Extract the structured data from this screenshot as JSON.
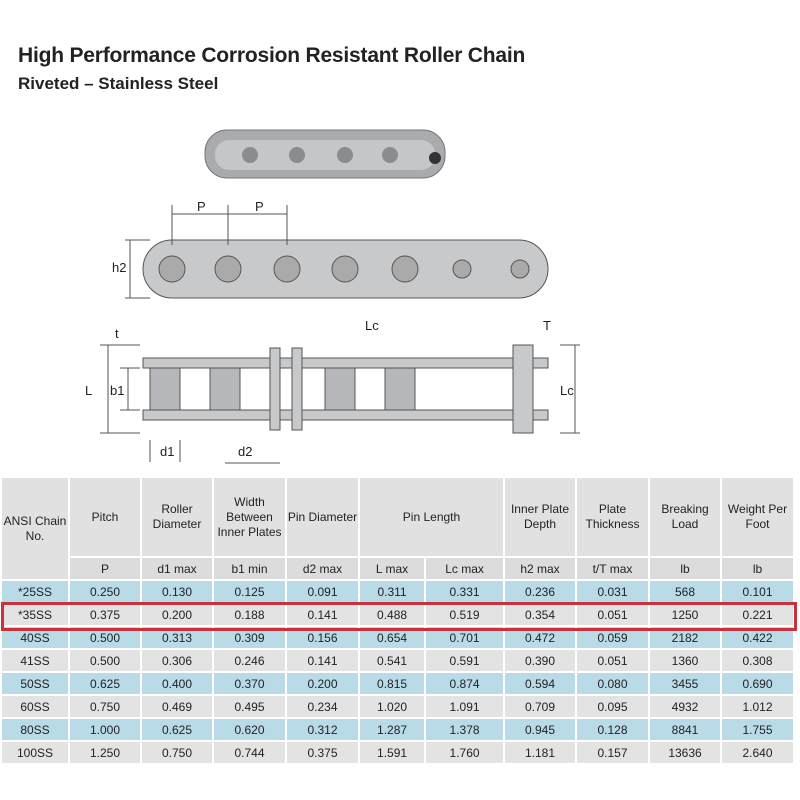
{
  "title": "High Performance Corrosion Resistant Roller Chain",
  "subtitle": "Riveted – Stainless Steel",
  "diagram_labels": {
    "p1": "P",
    "p2": "P",
    "h2": "h2",
    "t": "t",
    "lc_top": "Lc",
    "T": "T",
    "L": "L",
    "b1": "b1",
    "lc_side": "Lc",
    "d1": "d1",
    "d2": "d2"
  },
  "table": {
    "headers": [
      "ANSI Chain No.",
      "Pitch",
      "Roller Diameter",
      "Width Between Inner Plates",
      "Pin Diameter",
      "Pin Length",
      "Inner Plate Depth",
      "Plate Thickness",
      "Breaking Load",
      "Weight Per Foot"
    ],
    "subheaders": [
      "P",
      "d1 max",
      "b1 min",
      "d2 max",
      "L max",
      "Lc max",
      "h2 max",
      "t/T max",
      "lb",
      "lb"
    ],
    "rows": [
      [
        "*25SS",
        "0.250",
        "0.130",
        "0.125",
        "0.091",
        "0.311",
        "0.331",
        "0.236",
        "0.031",
        "568",
        "0.101"
      ],
      [
        "*35SS",
        "0.375",
        "0.200",
        "0.188",
        "0.141",
        "0.488",
        "0.519",
        "0.354",
        "0.051",
        "1250",
        "0.221"
      ],
      [
        "40SS",
        "0.500",
        "0.313",
        "0.309",
        "0.156",
        "0.654",
        "0.701",
        "0.472",
        "0.059",
        "2182",
        "0.422"
      ],
      [
        "41SS",
        "0.500",
        "0.306",
        "0.246",
        "0.141",
        "0.541",
        "0.591",
        "0.390",
        "0.051",
        "1360",
        "0.308"
      ],
      [
        "50SS",
        "0.625",
        "0.400",
        "0.370",
        "0.200",
        "0.815",
        "0.874",
        "0.594",
        "0.080",
        "3455",
        "0.690"
      ],
      [
        "60SS",
        "0.750",
        "0.469",
        "0.495",
        "0.234",
        "1.020",
        "1.091",
        "0.709",
        "0.095",
        "4932",
        "1.012"
      ],
      [
        "80SS",
        "1.000",
        "0.625",
        "0.620",
        "0.312",
        "1.287",
        "1.378",
        "0.945",
        "0.128",
        "8841",
        "1.755"
      ],
      [
        "100SS",
        "1.250",
        "0.750",
        "0.744",
        "0.375",
        "1.591",
        "1.760",
        "1.181",
        "0.157",
        "13636",
        "2.640"
      ]
    ],
    "highlighted_row": "*35SS"
  },
  "colors": {
    "row_blue": "#b9dbe8",
    "row_gray": "#e3e3e3",
    "highlight": "#c8323c"
  }
}
